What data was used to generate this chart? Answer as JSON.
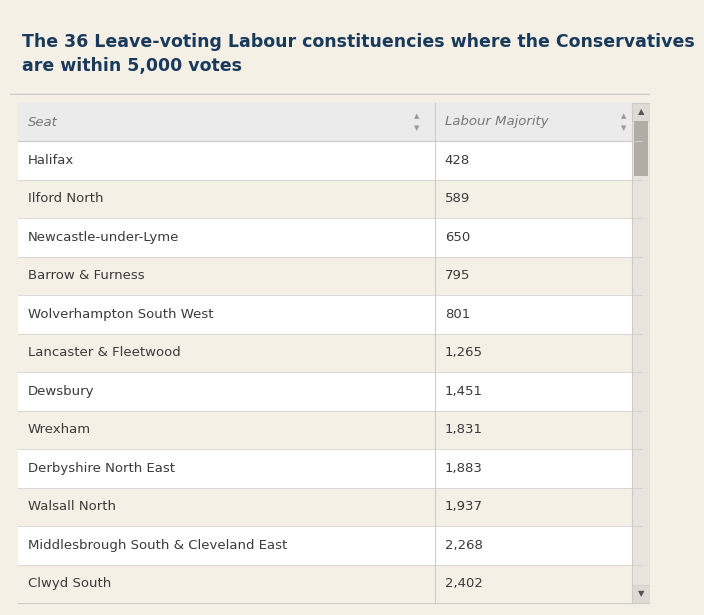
{
  "title_line1": "The 36 Leave-voting Labour constituencies where the Conservatives",
  "title_line2": "are within 5,000 votes",
  "title_color": "#1a3a5c",
  "page_bg": "#f5f0e6",
  "table_bg": "#ffffff",
  "header_row": [
    "Seat",
    "Labour Majority"
  ],
  "rows": [
    [
      "Halifax",
      "428"
    ],
    [
      "Ilford North",
      "589"
    ],
    [
      "Newcastle-under-Lyme",
      "650"
    ],
    [
      "Barrow & Furness",
      "795"
    ],
    [
      "Wolverhampton South West",
      "801"
    ],
    [
      "Lancaster & Fleetwood",
      "1,265"
    ],
    [
      "Dewsbury",
      "1,451"
    ],
    [
      "Wrexham",
      "1,831"
    ],
    [
      "Derbyshire North East",
      "1,883"
    ],
    [
      "Walsall North",
      "1,937"
    ],
    [
      "Middlesbrough South & Cleveland East",
      "2,268"
    ],
    [
      "Clwyd South",
      "2,402"
    ]
  ],
  "header_bg": "#ebebeb",
  "row_bg": "#ffffff",
  "row_alt_bg": "#f5f0e6",
  "text_color": "#3a3a3a",
  "header_text_color": "#777777",
  "border_color": "#cccccc",
  "title_fontsize": 12.5,
  "header_fontsize": 9.5,
  "cell_fontsize": 9.5,
  "scrollbar_track": "#e8e4de",
  "scrollbar_thumb": "#b0aca6",
  "scrollbar_arrow_bg": "#dedad4",
  "col_split": 0.668
}
